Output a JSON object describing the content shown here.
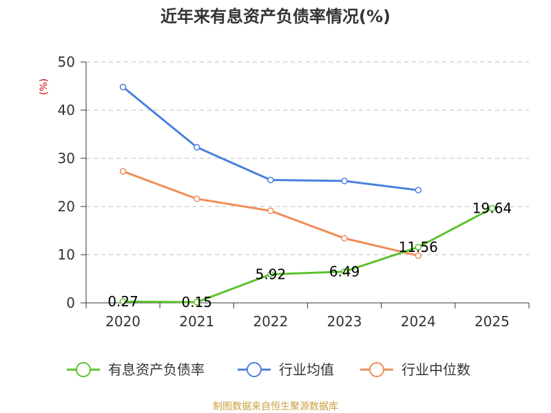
{
  "chart_data": {
    "type": "line",
    "title": "近年来有息资产负债率情况(%)",
    "ylabel": "(%)",
    "xlabel": "",
    "categories": [
      "2020",
      "2021",
      "2022",
      "2023",
      "2024",
      "2025"
    ],
    "ylim": [
      0,
      50
    ],
    "yticks": [
      0,
      10,
      20,
      30,
      40,
      50
    ],
    "grid": true,
    "legend_position": "bottom",
    "series": [
      {
        "name": "有息资产负债率",
        "color": "#5cc22e",
        "values": [
          0.27,
          0.15,
          5.92,
          6.49,
          11.56,
          19.64
        ],
        "labels": [
          "0.27",
          "0.15",
          "5.92",
          "6.49",
          "11.56",
          "19.64"
        ]
      },
      {
        "name": "行业均值",
        "color": "#4a7fdb",
        "values": [
          44.8,
          32.3,
          25.5,
          25.3,
          23.4,
          null
        ]
      },
      {
        "name": "行业中位数",
        "color": "#f28c55",
        "values": [
          27.3,
          21.6,
          19.1,
          13.4,
          9.8,
          null
        ]
      }
    ],
    "source": "制图数据来自恒生聚源数据库"
  }
}
